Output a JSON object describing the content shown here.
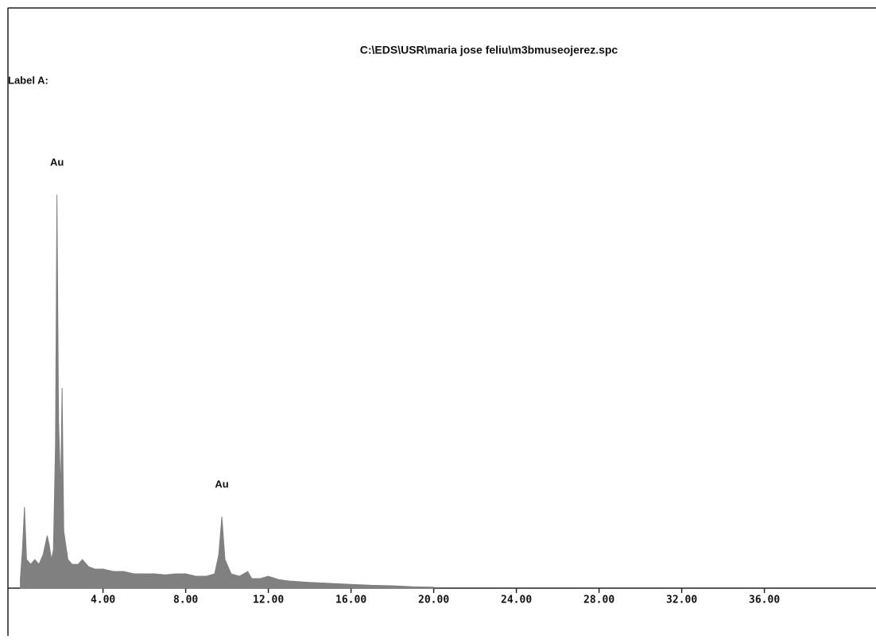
{
  "chart_data": {
    "type": "area",
    "title": "C:\\EDS\\USR\\maria jose feliu\\m3bmuseojerez.spc",
    "label": "Label A:",
    "annotations": [
      {
        "text": "Au",
        "x": 1.77
      },
      {
        "text": "Au",
        "x": 9.75
      }
    ],
    "color": "#808080",
    "x": [
      0.0,
      0.1,
      0.2,
      0.3,
      0.5,
      0.7,
      0.9,
      1.1,
      1.3,
      1.4,
      1.5,
      1.6,
      1.7,
      1.77,
      1.85,
      1.95,
      2.02,
      2.1,
      2.3,
      2.5,
      2.8,
      3.0,
      3.3,
      3.6,
      4.0,
      4.5,
      5.0,
      5.5,
      6.0,
      6.5,
      7.0,
      7.5,
      8.0,
      8.5,
      9.0,
      9.4,
      9.6,
      9.75,
      9.9,
      10.2,
      10.6,
      11.0,
      11.2,
      11.6,
      12.0,
      12.5,
      13,
      14,
      15,
      16,
      17,
      18,
      19,
      20
    ],
    "values": [
      2,
      8,
      17,
      6,
      5,
      6,
      5,
      7,
      11,
      9,
      6,
      8,
      30,
      82.5,
      35,
      20,
      42,
      12,
      6,
      5,
      5,
      6,
      4.5,
      4,
      4,
      3.5,
      3.5,
      3,
      3,
      3,
      2.8,
      3,
      3,
      2.5,
      2.5,
      3,
      7,
      15,
      6,
      3,
      2.5,
      3.5,
      2,
      2,
      2.5,
      1.8,
      1.5,
      1.2,
      1,
      0.8,
      0.6,
      0.5,
      0.3,
      0.2
    ],
    "xlim": [
      -0.6,
      41.4
    ],
    "ylim": [
      0,
      100
    ],
    "xticks": [
      {
        "value": 4,
        "label": "4.00"
      },
      {
        "value": 8,
        "label": "8.00"
      },
      {
        "value": 12,
        "label": "12.00"
      },
      {
        "value": 16,
        "label": "16.00"
      },
      {
        "value": 20,
        "label": "20.00"
      },
      {
        "value": 24,
        "label": "24.00"
      },
      {
        "value": 28,
        "label": "28.00"
      },
      {
        "value": 32,
        "label": "32.00"
      },
      {
        "value": 36,
        "label": "36.00"
      }
    ]
  }
}
